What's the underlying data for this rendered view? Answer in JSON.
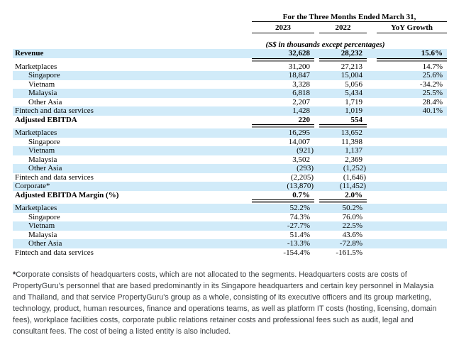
{
  "colors": {
    "stripe": "#d1ebf9",
    "rule_gray": "#979797",
    "footnote_text": "#3c4043"
  },
  "header": {
    "period_title": "For the Three Months Ended March 31,",
    "col_2023": "2023",
    "col_2022": "2022",
    "col_yoy": "YoY Growth",
    "units_note": "(S$ in thousands except percentages)"
  },
  "table": {
    "rows": [
      {
        "label": "Revenue",
        "indent": 0,
        "bold": true,
        "stripe": true,
        "v2023": "32,628",
        "v2022": "28,232",
        "yoy": "15.6%",
        "rule_after": true
      },
      {
        "label": "Marketplaces",
        "indent": 0,
        "bold": false,
        "stripe": false,
        "v2023": "31,200",
        "v2022": "27,213",
        "yoy": "14.7%"
      },
      {
        "label": "Singapore",
        "indent": 1,
        "bold": false,
        "stripe": true,
        "v2023": "18,847",
        "v2022": "15,004",
        "yoy": "25.6%"
      },
      {
        "label": "Vietnam",
        "indent": 1,
        "bold": false,
        "stripe": false,
        "v2023": "3,328",
        "v2022": "5,056",
        "yoy": "-34.2%"
      },
      {
        "label": "Malaysia",
        "indent": 1,
        "bold": false,
        "stripe": true,
        "v2023": "6,818",
        "v2022": "5,434",
        "yoy": "25.5%"
      },
      {
        "label": "Other Asia",
        "indent": 1,
        "bold": false,
        "stripe": false,
        "v2023": "2,207",
        "v2022": "1,719",
        "yoy": "28.4%"
      },
      {
        "label": "Fintech and data services",
        "indent": 0,
        "bold": false,
        "stripe": true,
        "v2023": "1,428",
        "v2022": "1,019",
        "yoy": "40.1%"
      },
      {
        "label": "Adjusted EBITDA",
        "indent": 0,
        "bold": true,
        "stripe": false,
        "v2023": "220",
        "v2022": "554",
        "yoy": "",
        "rule_after": true
      },
      {
        "label": "Marketplaces",
        "indent": 0,
        "bold": false,
        "stripe": true,
        "v2023": "16,295",
        "v2022": "13,652",
        "yoy": ""
      },
      {
        "label": "Singapore",
        "indent": 1,
        "bold": false,
        "stripe": false,
        "v2023": "14,007",
        "v2022": "11,398",
        "yoy": ""
      },
      {
        "label": "Vietnam",
        "indent": 1,
        "bold": false,
        "stripe": true,
        "v2023": "(921)",
        "v2022": "1,137",
        "yoy": ""
      },
      {
        "label": "Malaysia",
        "indent": 1,
        "bold": false,
        "stripe": false,
        "v2023": "3,502",
        "v2022": "2,369",
        "yoy": ""
      },
      {
        "label": "Other Asia",
        "indent": 1,
        "bold": false,
        "stripe": true,
        "v2023": "(293)",
        "v2022": "(1,252)",
        "yoy": ""
      },
      {
        "label": "Fintech and data services",
        "indent": 0,
        "bold": false,
        "stripe": false,
        "v2023": "(2,205)",
        "v2022": "(1,646)",
        "yoy": ""
      },
      {
        "label": "Corporate*",
        "indent": 0,
        "bold": false,
        "stripe": true,
        "v2023": "(13,870)",
        "v2022": "(11,452)",
        "yoy": ""
      },
      {
        "label": "Adjusted EBITDA Margin (%)",
        "indent": 0,
        "bold": true,
        "stripe": false,
        "v2023": "0.7%",
        "v2022": "2.0%",
        "yoy": "",
        "rule_after": true
      },
      {
        "label": "Marketplaces",
        "indent": 0,
        "bold": false,
        "stripe": true,
        "v2023": "52.2%",
        "v2022": "50.2%",
        "yoy": ""
      },
      {
        "label": "Singapore",
        "indent": 1,
        "bold": false,
        "stripe": false,
        "v2023": "74.3%",
        "v2022": "76.0%",
        "yoy": ""
      },
      {
        "label": "Vietnam",
        "indent": 1,
        "bold": false,
        "stripe": true,
        "v2023": "-27.7%",
        "v2022": "22.5%",
        "yoy": ""
      },
      {
        "label": "Malaysia",
        "indent": 1,
        "bold": false,
        "stripe": false,
        "v2023": "51.4%",
        "v2022": "43.6%",
        "yoy": ""
      },
      {
        "label": "Other Asia",
        "indent": 1,
        "bold": false,
        "stripe": true,
        "v2023": "-13.3%",
        "v2022": "-72.8%",
        "yoy": ""
      },
      {
        "label": "Fintech and data services",
        "indent": 0,
        "bold": false,
        "stripe": false,
        "v2023": "-154.4%",
        "v2022": "-161.5%",
        "yoy": ""
      }
    ]
  },
  "footnote": {
    "marker": "*",
    "text": "Corporate consists of headquarters costs, which are not allocated to the segments. Headquarters costs are costs of PropertyGuru's personnel that are based predominantly in its Singapore headquarters and certain key personnel in Malaysia and Thailand, and that service PropertyGuru's group as a whole, consisting of its executive officers and its group marketing, technology, product, human resources, finance and operations teams, as well as platform IT costs (hosting, licensing, domain fees), workplace facilities costs, corporate public relations retainer costs and professional fees such as audit, legal and consultant fees. The cost of being a listed entity is also included."
  }
}
